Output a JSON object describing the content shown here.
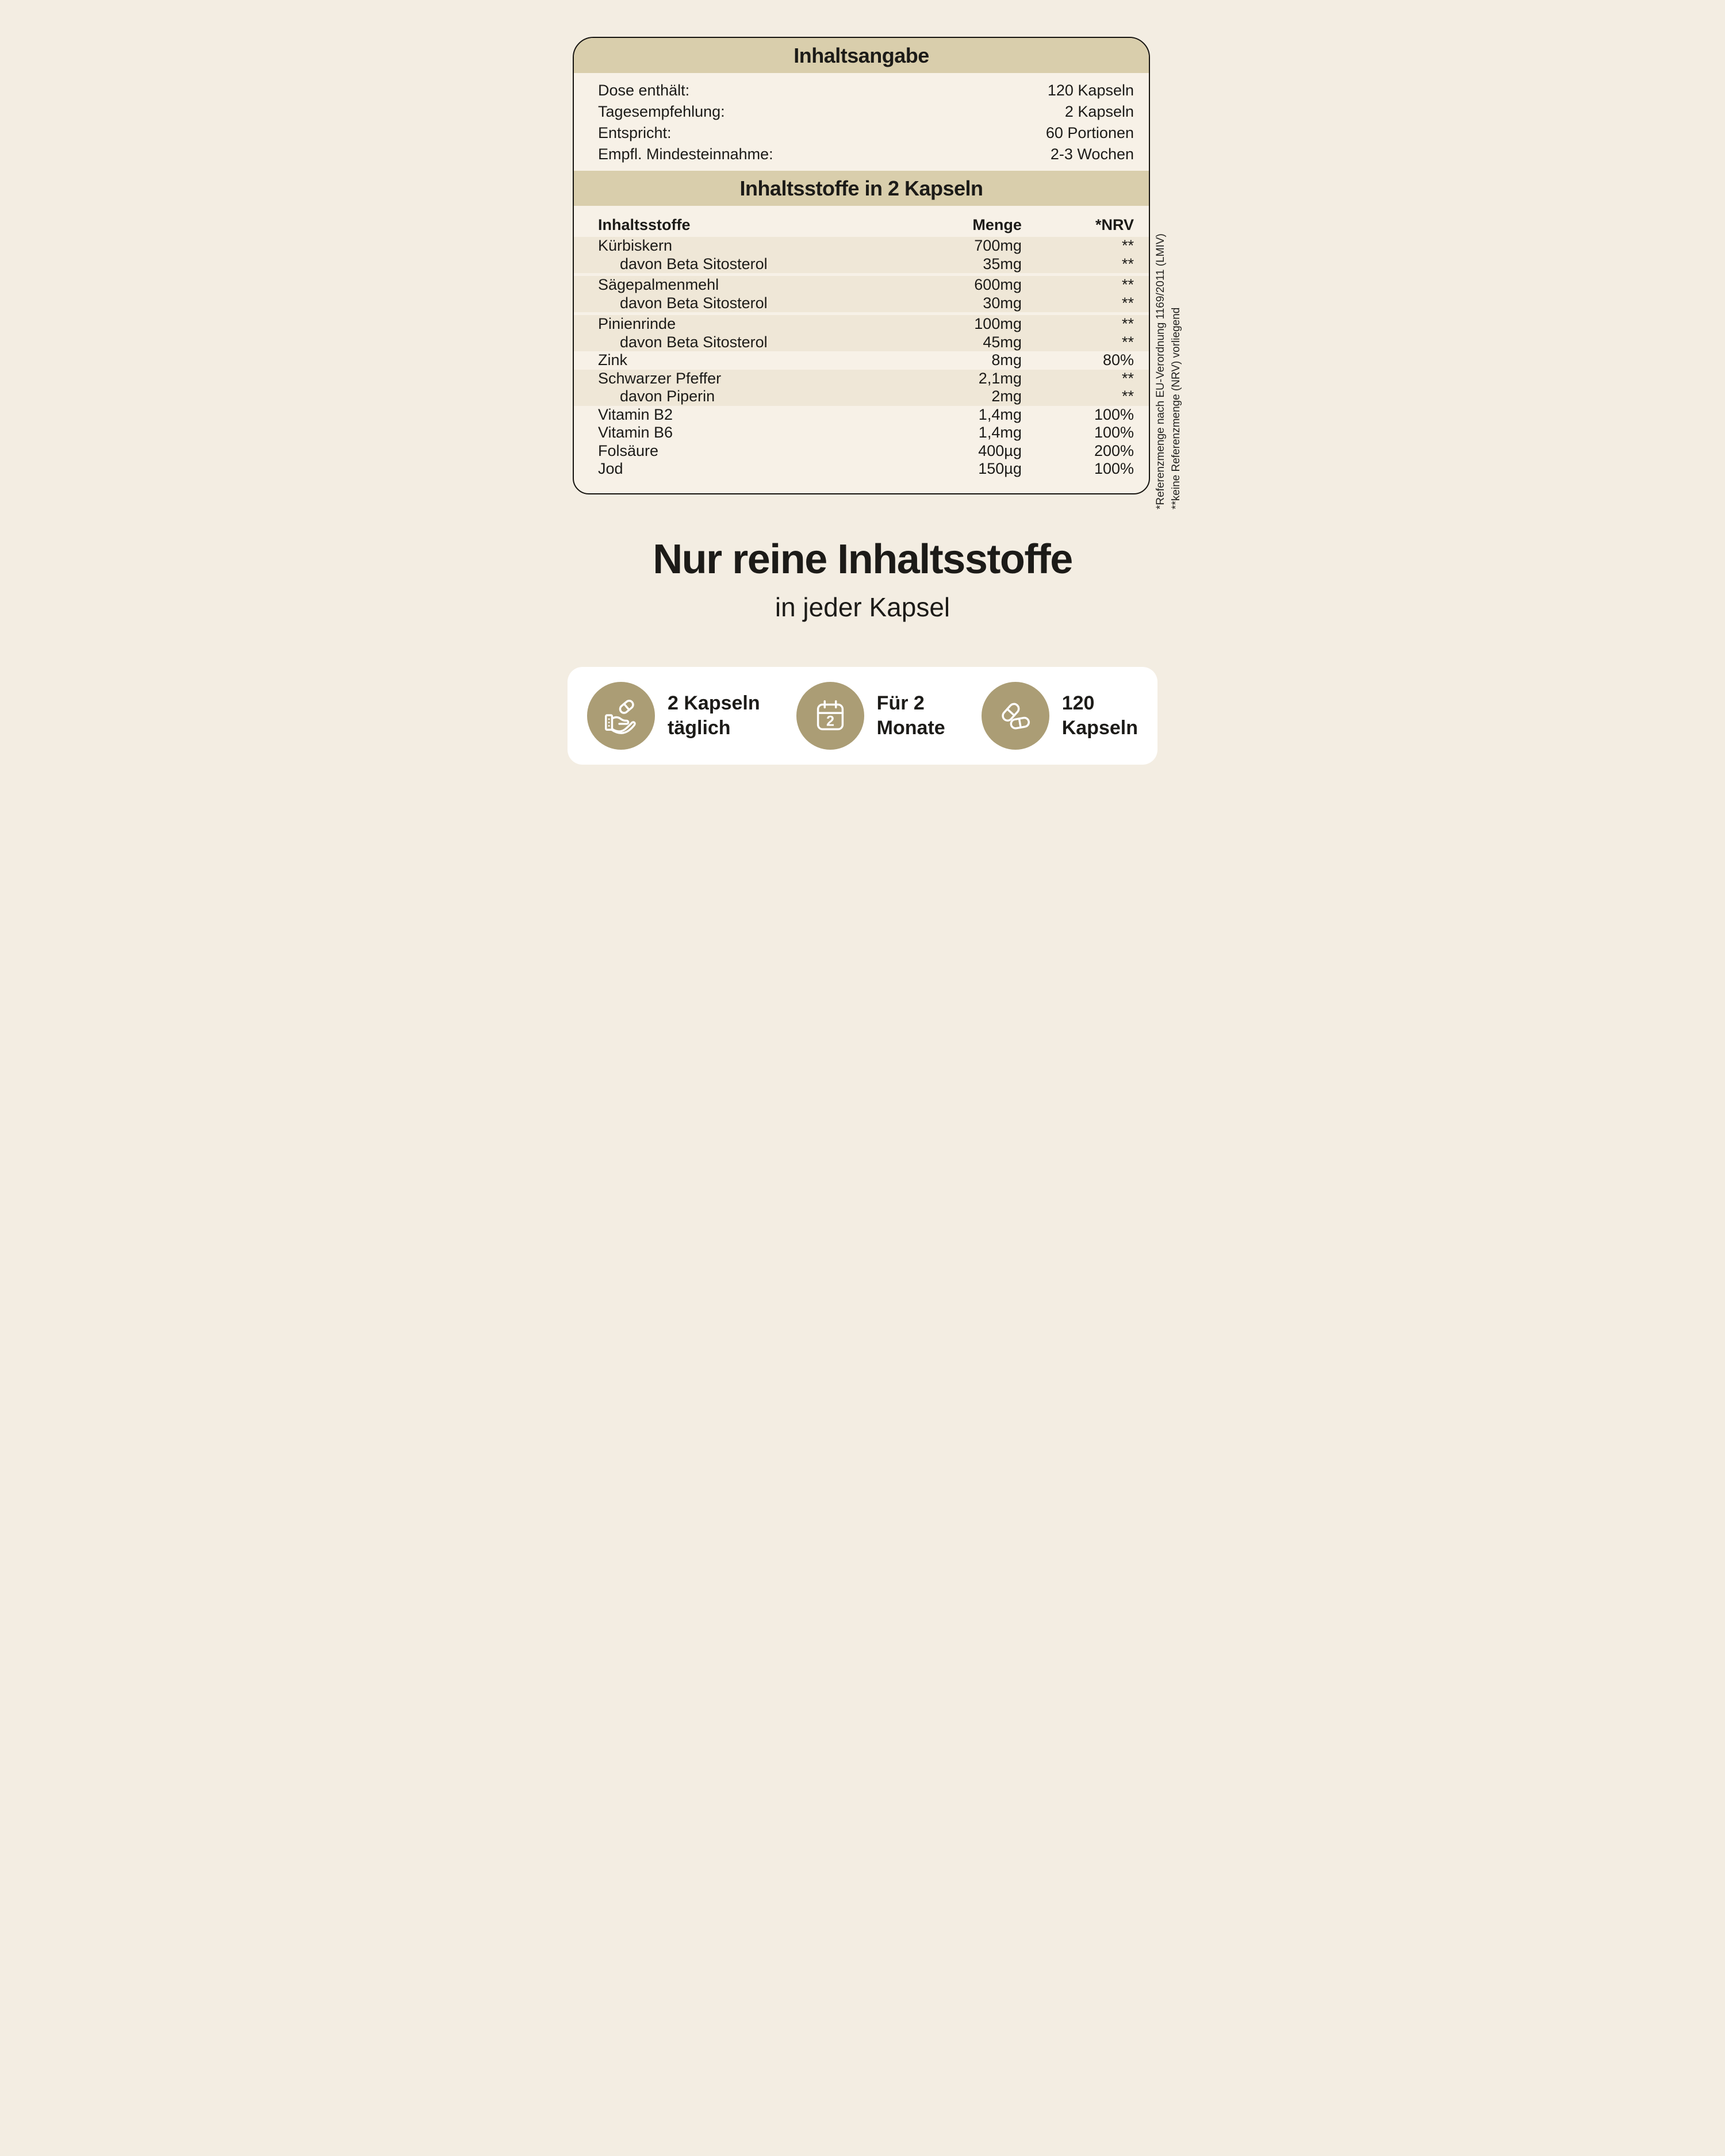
{
  "colors": {
    "page_bg": "#F3EDE2",
    "card_bg": "#F7F1E7",
    "band": "#D9CEAC",
    "stripe": "#EFE7D7",
    "accent": "#AB9D75",
    "text": "#1C1B18",
    "white_card": "#FFFFFF",
    "border": "#15130F"
  },
  "panel": {
    "title": "Inhaltsangabe",
    "info_rows": [
      {
        "label": "Dose enthält:",
        "value": "120 Kapseln"
      },
      {
        "label": "Tagesempfehlung:",
        "value": "2 Kapseln"
      },
      {
        "label": "Entspricht:",
        "value": "60 Portionen"
      },
      {
        "label": "Empfl. Mindesteinnahme:",
        "value": "2-3 Wochen"
      }
    ],
    "subtitle": "Inhaltsstoffe in 2 Kapseln",
    "table": {
      "headers": {
        "ingredient": "Inhaltsstoffe",
        "amount": "Menge",
        "nrv": "*NRV"
      },
      "rows": [
        {
          "ingredient": "Kürbiskern",
          "amount": "700mg",
          "nrv": "**",
          "sub": false,
          "stripe": 1
        },
        {
          "ingredient": "davon Beta Sitosterol",
          "amount": "35mg",
          "nrv": "**",
          "sub": true,
          "stripe": 1
        },
        {
          "ingredient": "Sägepalmenmehl",
          "amount": "600mg",
          "nrv": "**",
          "sub": false,
          "stripe": 2
        },
        {
          "ingredient": "davon Beta Sitosterol",
          "amount": "30mg",
          "nrv": "**",
          "sub": true,
          "stripe": 2
        },
        {
          "ingredient": "Pinienrinde",
          "amount": "100mg",
          "nrv": "**",
          "sub": false,
          "stripe": 3
        },
        {
          "ingredient": "davon Beta Sitosterol",
          "amount": "45mg",
          "nrv": "**",
          "sub": true,
          "stripe": 3
        },
        {
          "ingredient": "Zink",
          "amount": "8mg",
          "nrv": "80%",
          "sub": false,
          "stripe": 0
        },
        {
          "ingredient": "Schwarzer Pfeffer",
          "amount": "2,1mg",
          "nrv": "**",
          "sub": false,
          "stripe": 4
        },
        {
          "ingredient": "davon Piperin",
          "amount": "2mg",
          "nrv": "**",
          "sub": true,
          "stripe": 4
        },
        {
          "ingredient": "Vitamin B2",
          "amount": "1,4mg",
          "nrv": "100%",
          "sub": false,
          "stripe": 0
        },
        {
          "ingredient": "Vitamin B6",
          "amount": "1,4mg",
          "nrv": "100%",
          "sub": false,
          "stripe": 0
        },
        {
          "ingredient": "Folsäure",
          "amount": "400µg",
          "nrv": "200%",
          "sub": false,
          "stripe": 0
        },
        {
          "ingredient": "Jod",
          "amount": "150µg",
          "nrv": "100%",
          "sub": false,
          "stripe": 0
        }
      ]
    },
    "footnotes": [
      "*Referenzmenge nach EU-Verordnung 1169/2011 (LMIV)",
      "**keine Referenzmenge (NRV) vorliegend"
    ]
  },
  "headline": {
    "title": "Nur reine Inhaltsstoffe",
    "subtitle": "in jeder Kapsel"
  },
  "benefits": [
    {
      "icon": "hand-pill-icon",
      "lines": [
        "2 Kapseln",
        "täglich"
      ]
    },
    {
      "icon": "calendar-icon",
      "lines": [
        "Für 2",
        "Monate"
      ],
      "calendar_number": "2"
    },
    {
      "icon": "capsules-icon",
      "lines": [
        "120",
        "Kapseln"
      ]
    }
  ]
}
